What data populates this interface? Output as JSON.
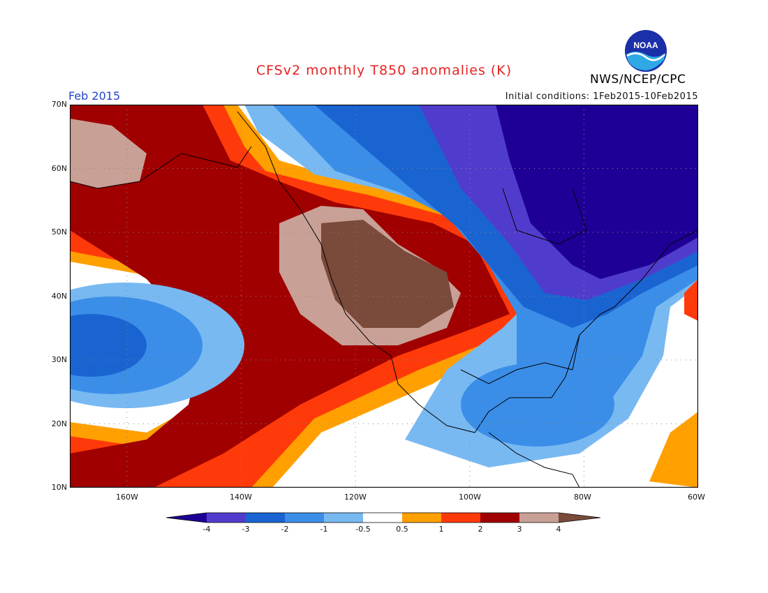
{
  "title": "CFSv2 monthly T850 anomalies (K)",
  "org": "NWS/NCEP/CPC",
  "logo_text": "NOAA",
  "month": "Feb 2015",
  "initial_conditions": "Initial conditions: 1Feb2015-10Feb2015",
  "map": {
    "lon_range": [
      -170,
      -60
    ],
    "lat_range": [
      10,
      70
    ],
    "lat_ticks": [
      "70N",
      "60N",
      "50N",
      "40N",
      "30N",
      "20N",
      "10N"
    ],
    "lon_ticks": [
      "160W",
      "140W",
      "120W",
      "100W",
      "80W",
      "60W"
    ],
    "grid": true
  },
  "colorbar": {
    "levels": [
      "-4",
      "-3",
      "-2",
      "-1",
      "-0.5",
      "0.5",
      "1",
      "2",
      "3",
      "4"
    ],
    "colors": [
      "#1f0096",
      "#503ccc",
      "#1a64d2",
      "#3b8ee8",
      "#78b9f2",
      "#ffffff",
      "#ffa000",
      "#ff3a0a",
      "#a00000",
      "#c8a096",
      "#7a4a3a"
    ]
  },
  "anomaly_regions": [
    {
      "label": "strong warm anomaly over western US and Great Basin",
      "value": "> 4"
    },
    {
      "label": "cold anomaly over Hudson Bay and eastern Canada",
      "value": "< -4"
    },
    {
      "label": "cool anomaly over central Pacific near 30N",
      "value": "-3 to -2"
    },
    {
      "label": "cool anomaly over eastern US and Gulf of Mexico",
      "value": "-2 to -0.5"
    },
    {
      "label": "warm anomaly arc over northeast Pacific and Alaska",
      "value": "2 to 3"
    }
  ]
}
